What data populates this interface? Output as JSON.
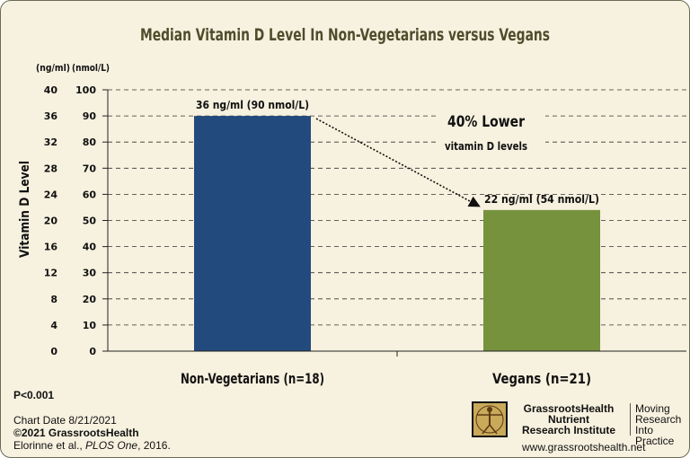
{
  "chart_data": {
    "type": "bar",
    "title": "Median Vitamin D Level In Non-Vegetarians versus Vegans",
    "ylabel": "Vitamin D Level",
    "xlabel": "",
    "categories": [
      "Non-Vegetarians (n=18)",
      "Vegans (n=21)"
    ],
    "values": [
      90,
      54
    ],
    "value_unit": "nmol/L",
    "data_labels": [
      "36 ng/ml (90 nmol/L)",
      "22 ng/ml (54 nmol/L)"
    ],
    "bar_colors": [
      "#234a7c",
      "#76923c"
    ],
    "ylim": [
      0,
      100
    ],
    "y_ticks_nmol": [
      "0",
      "10",
      "20",
      "30",
      "40",
      "50",
      "60",
      "70",
      "80",
      "90",
      "100"
    ],
    "y_ticks_ng": [
      "0",
      "4",
      "8",
      "12",
      "16",
      "20",
      "24",
      "28",
      "32",
      "36",
      "40"
    ],
    "axis_unit_ng": "(ng/ml)",
    "axis_unit_nmol": "(nmol/L)",
    "grid": true,
    "annotation": {
      "headline": "40% Lower",
      "subline": "vitamin D levels",
      "arrow": true
    }
  },
  "footer": {
    "p_value": "P<0.001",
    "chart_date": "Chart Date 8/21/2021",
    "copyright": "©2021 GrassrootsHealth",
    "citation_authors": "Elorinne et al., ",
    "citation_journal": "PLOS One",
    "citation_year": ", 2016."
  },
  "org": {
    "name_line1": "GrassrootsHealth",
    "name_line2": "Nutrient",
    "name_line3": "Research Institute",
    "tag_line1": "Moving",
    "tag_line2": "Research",
    "tag_line3": "Into Practice",
    "website": "www.grassrootshealth.net"
  },
  "colors": {
    "background": "#f7f1df",
    "title": "#4d4d2c"
  }
}
